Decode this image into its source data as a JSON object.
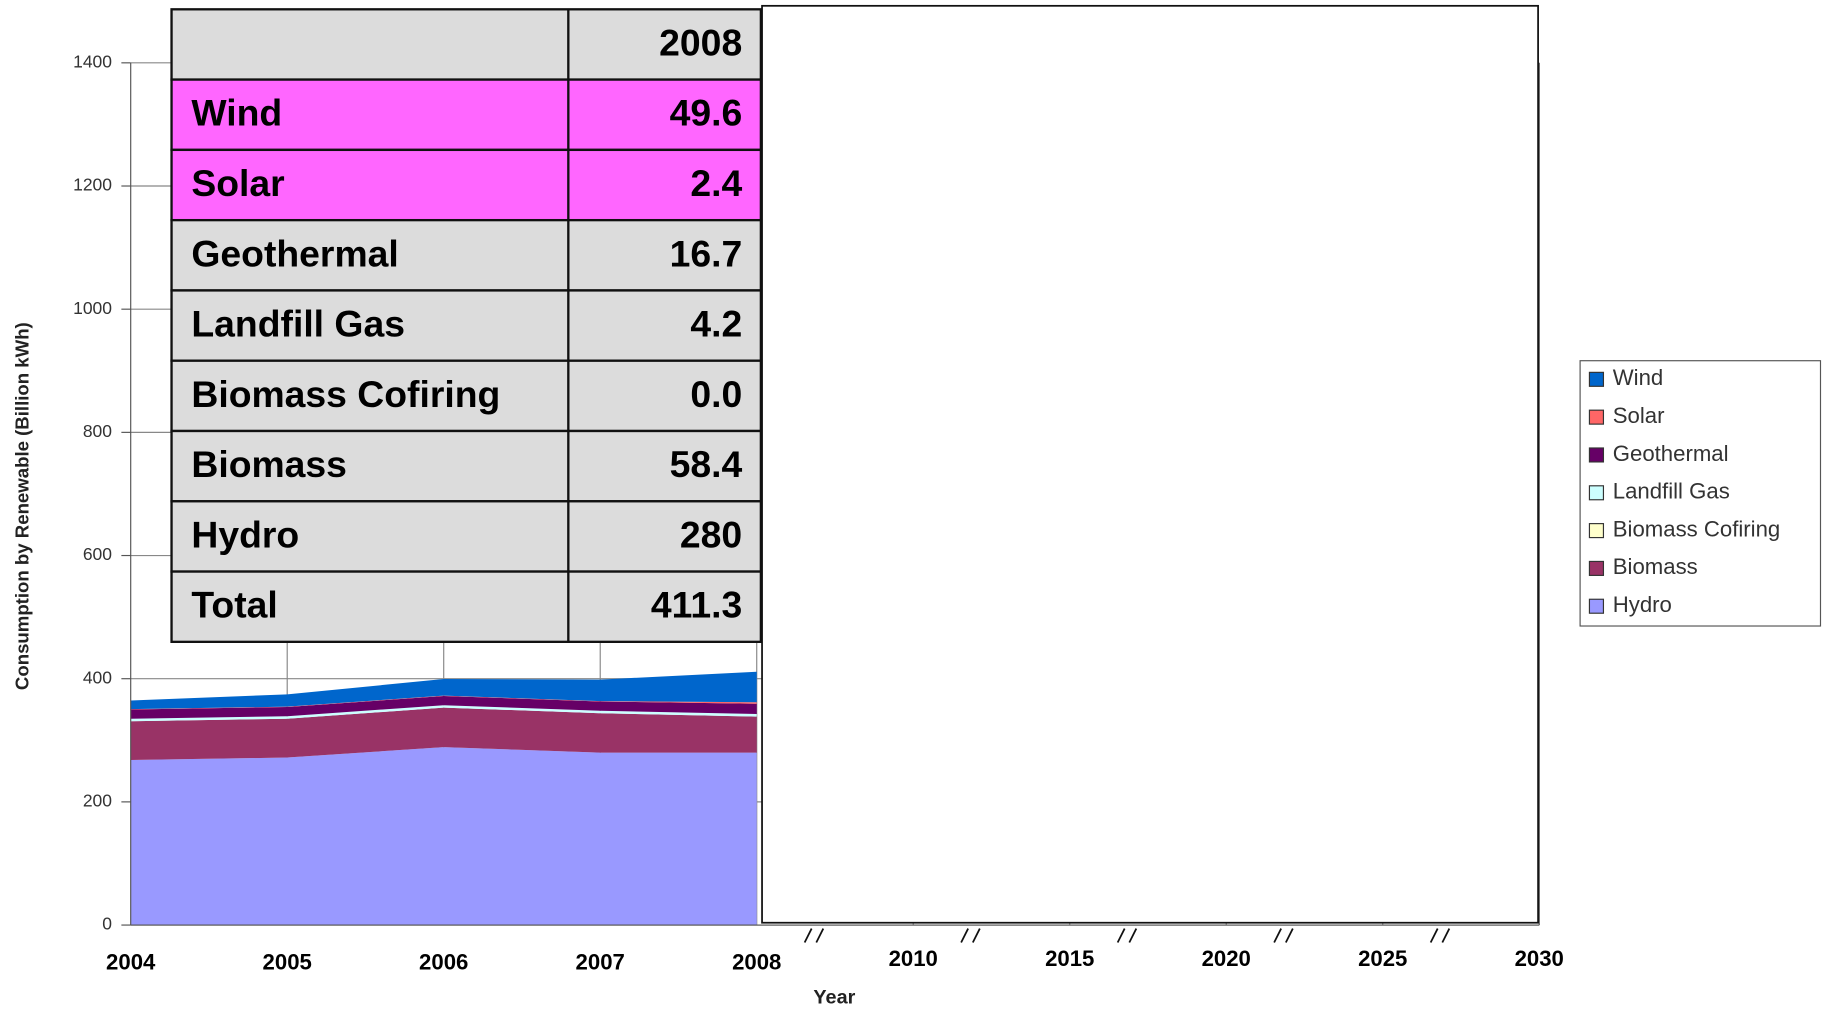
{
  "chart_data": {
    "type": "area",
    "stacked": true,
    "ylabel": "Consumption by Renewable (Billion kWh)",
    "xlabel": "Year",
    "categories": [
      "2004",
      "2005",
      "2006",
      "2007",
      "2008",
      "2010",
      "2015",
      "2020",
      "2025",
      "2030"
    ],
    "series": [
      {
        "name": "Wind",
        "color": "#0066cc",
        "values": [
          14,
          20,
          27,
          35,
          49.6,
          null,
          null,
          null,
          null,
          null
        ]
      },
      {
        "name": "Solar",
        "color": "#ff6666",
        "values": [
          0.6,
          0.6,
          0.5,
          0.6,
          2.4,
          null,
          null,
          null,
          null,
          null
        ]
      },
      {
        "name": "Geothermal",
        "color": "#660066",
        "values": [
          15,
          15,
          15,
          15,
          16.7,
          null,
          null,
          null,
          null,
          null
        ]
      },
      {
        "name": "Landfill Gas",
        "color": "#ccffff",
        "values": [
          4,
          4,
          4,
          4,
          4.2,
          null,
          null,
          null,
          null,
          null
        ]
      },
      {
        "name": "Biomass Cofiring",
        "color": "#ffffcc",
        "values": [
          0,
          0,
          0,
          0,
          0.0,
          null,
          null,
          null,
          null,
          null
        ]
      },
      {
        "name": "Biomass",
        "color": "#993366",
        "values": [
          63,
          63,
          64,
          64,
          58.4,
          null,
          null,
          null,
          null,
          null
        ]
      },
      {
        "name": "Hydro",
        "color": "#9999ff",
        "values": [
          268,
          272,
          289,
          280,
          280,
          null,
          null,
          null,
          null,
          null
        ]
      }
    ],
    "ylim": [
      0,
      1400
    ],
    "yticks": [
      0,
      200,
      400,
      600,
      800,
      1000,
      1200,
      1400
    ],
    "grid": true,
    "legend": "right"
  },
  "table": {
    "header": "2008",
    "rows": [
      [
        "Wind",
        "49.6"
      ],
      [
        "Solar",
        "2.4"
      ],
      [
        "Geothermal",
        "16.7"
      ],
      [
        "Landfill Gas",
        "4.2"
      ],
      [
        "Biomass Cofiring",
        "0.0"
      ],
      [
        "Biomass",
        "58.4"
      ],
      [
        "Hydro",
        "280"
      ],
      [
        "Total",
        "411.3"
      ]
    ],
    "highlight": [
      0,
      1
    ]
  }
}
